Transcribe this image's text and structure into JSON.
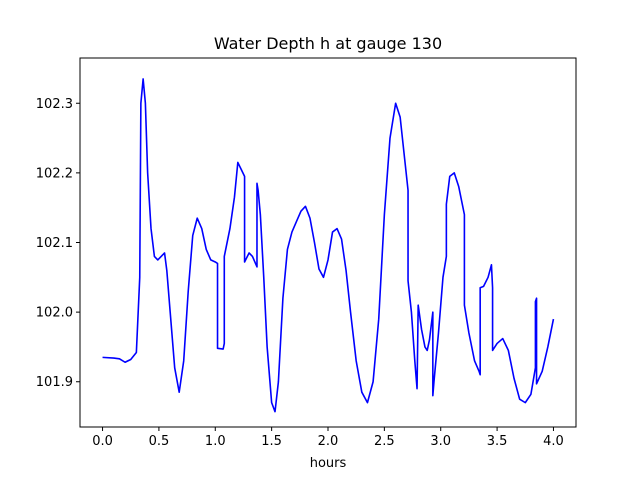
{
  "chart_data": {
    "type": "line",
    "title": "Water Depth h at gauge 130",
    "xlabel": "hours",
    "ylabel": "",
    "xlim": [
      -0.2,
      4.2
    ],
    "ylim": [
      101.835,
      102.365
    ],
    "xticks": [
      0.0,
      0.5,
      1.0,
      1.5,
      2.0,
      2.5,
      3.0,
      3.5,
      4.0
    ],
    "xtick_labels": [
      "0.0",
      "0.5",
      "1.0",
      "1.5",
      "2.0",
      "2.5",
      "3.0",
      "3.5",
      "4.0"
    ],
    "yticks": [
      101.9,
      102.0,
      102.1,
      102.2,
      102.3
    ],
    "ytick_labels": [
      "101.9",
      "102.0",
      "102.1",
      "102.2",
      "102.3"
    ],
    "grid": false,
    "legend": "none",
    "series": [
      {
        "color": "#0000ff",
        "x": [
          0.0,
          0.1,
          0.15,
          0.2,
          0.25,
          0.3,
          0.33,
          0.34,
          0.36,
          0.38,
          0.4,
          0.43,
          0.46,
          0.49,
          0.52,
          0.55,
          0.57,
          0.6,
          0.64,
          0.68,
          0.72,
          0.76,
          0.8,
          0.84,
          0.88,
          0.92,
          0.96,
          1.0,
          1.02,
          1.02,
          1.07,
          1.08,
          1.08,
          1.13,
          1.17,
          1.2,
          1.23,
          1.26,
          1.26,
          1.3,
          1.33,
          1.37,
          1.37,
          1.38,
          1.4,
          1.43,
          1.46,
          1.5,
          1.53,
          1.56,
          1.6,
          1.64,
          1.68,
          1.72,
          1.76,
          1.8,
          1.84,
          1.88,
          1.92,
          1.96,
          2.0,
          2.04,
          2.08,
          2.12,
          2.16,
          2.2,
          2.25,
          2.3,
          2.35,
          2.4,
          2.45,
          2.5,
          2.55,
          2.6,
          2.64,
          2.68,
          2.7,
          2.71,
          2.71,
          2.74,
          2.77,
          2.79,
          2.8,
          2.83,
          2.86,
          2.88,
          2.9,
          2.93,
          2.93,
          2.94,
          2.98,
          3.02,
          3.05,
          3.05,
          3.08,
          3.12,
          3.16,
          3.21,
          3.21,
          3.25,
          3.3,
          3.34,
          3.35,
          3.35,
          3.38,
          3.42,
          3.45,
          3.46,
          3.46,
          3.5,
          3.55,
          3.6,
          3.65,
          3.7,
          3.75,
          3.8,
          3.84,
          3.84,
          3.85,
          3.85,
          3.9,
          3.95,
          4.0
        ],
        "y": [
          101.935,
          101.934,
          101.933,
          101.928,
          101.932,
          101.942,
          102.05,
          102.3,
          102.335,
          102.3,
          102.2,
          102.12,
          102.08,
          102.075,
          102.08,
          102.085,
          102.06,
          102.0,
          101.92,
          101.885,
          101.93,
          102.03,
          102.11,
          102.135,
          102.12,
          102.09,
          102.075,
          102.072,
          102.07,
          101.948,
          101.947,
          101.955,
          102.08,
          102.12,
          102.165,
          102.215,
          102.205,
          102.195,
          102.072,
          102.085,
          102.08,
          102.065,
          102.185,
          102.175,
          102.14,
          102.05,
          101.95,
          101.87,
          101.857,
          101.9,
          102.02,
          102.09,
          102.115,
          102.13,
          102.145,
          102.152,
          102.135,
          102.1,
          102.062,
          102.05,
          102.075,
          102.115,
          102.12,
          102.105,
          102.06,
          102.0,
          101.93,
          101.885,
          101.87,
          101.9,
          101.99,
          102.14,
          102.25,
          102.3,
          102.28,
          102.22,
          102.19,
          102.175,
          102.045,
          102.0,
          101.93,
          101.89,
          102.01,
          101.975,
          101.95,
          101.945,
          101.96,
          102.0,
          101.88,
          101.9,
          101.97,
          102.05,
          102.08,
          102.155,
          102.195,
          102.2,
          102.18,
          102.14,
          102.01,
          101.97,
          101.93,
          101.915,
          101.91,
          102.035,
          102.037,
          102.05,
          102.068,
          102.035,
          101.945,
          101.955,
          101.962,
          101.945,
          101.905,
          101.875,
          101.87,
          101.882,
          101.92,
          102.015,
          102.02,
          101.897,
          101.915,
          101.95,
          101.99
        ]
      }
    ]
  }
}
